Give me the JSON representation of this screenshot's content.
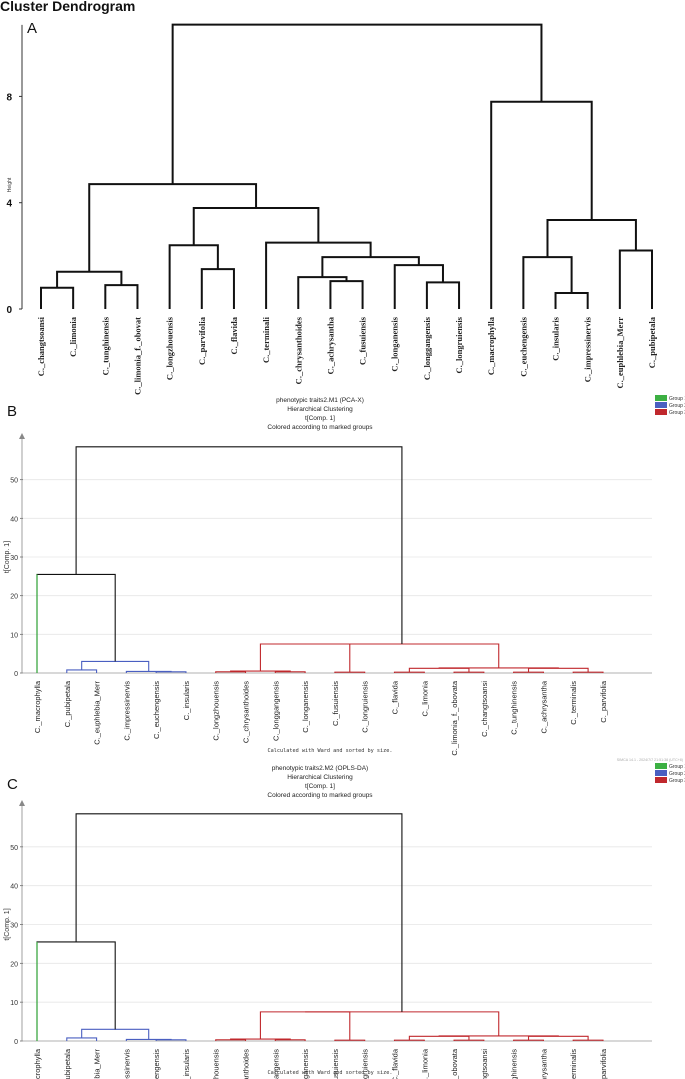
{
  "chart_data": [
    {
      "type": "dendrogram",
      "panel_label": "A",
      "title": "Cluster Dendrogram",
      "ylabel": "Height",
      "yticks": [
        0,
        4,
        8
      ],
      "ylim": [
        0,
        10.8
      ],
      "leaves": [
        "C._changtsoansi",
        "C._limonia",
        "C._tunghinensis",
        "C._limonia_f._obovat",
        "C._longzhouensis",
        "C._parvifolia",
        "C._flavida",
        "C._terminali",
        "C._chrysanthoides",
        "C._achrysantha",
        "C._fusuiensis",
        "C._longanensis",
        "C._longgangensis",
        "C._longruiensis",
        "C._macrophylla",
        "C._euchengensis",
        "C._insularis",
        "C._impressinervis",
        "C._euphlebia_Merr",
        "C._pubipetala"
      ],
      "merges": [
        {
          "a": "L0",
          "b": "L1",
          "h": 0.8
        },
        {
          "a": "L2",
          "b": "L3",
          "h": 0.9
        },
        {
          "a": "N0",
          "b": "N1",
          "h": 1.4
        },
        {
          "a": "L5",
          "b": "L6",
          "h": 1.5
        },
        {
          "a": "L4",
          "b": "N3",
          "h": 2.4
        },
        {
          "a": "L9",
          "b": "L10",
          "h": 1.05
        },
        {
          "a": "L8",
          "b": "N5",
          "h": 1.2
        },
        {
          "a": "L12",
          "b": "L13",
          "h": 1.0
        },
        {
          "a": "L11",
          "b": "N7",
          "h": 1.65
        },
        {
          "a": "N6",
          "b": "N8",
          "h": 1.95
        },
        {
          "a": "L7",
          "b": "N9",
          "h": 2.5
        },
        {
          "a": "N4",
          "b": "N10",
          "h": 3.8
        },
        {
          "a": "N2",
          "b": "N11",
          "h": 4.7
        },
        {
          "a": "L16",
          "b": "L17",
          "h": 0.6
        },
        {
          "a": "L15",
          "b": "N13",
          "h": 1.95
        },
        {
          "a": "L18",
          "b": "L19",
          "h": 2.2
        },
        {
          "a": "N14",
          "b": "N15",
          "h": 3.35
        },
        {
          "a": "L14",
          "b": "N16",
          "h": 7.8
        },
        {
          "a": "N12",
          "b": "N17",
          "h": 10.7
        }
      ]
    },
    {
      "type": "dendrogram",
      "panel_label": "B",
      "title": "phenotypic traits2.M1 (PCA-X)",
      "subtitle1": "Hierarchical Clustering",
      "subtitle2": "t[Comp. 1]",
      "subtitle3": "Colored according to marked groups",
      "ylabel": "t[Comp. 1]",
      "yticks": [
        0,
        10,
        20,
        30,
        40,
        50
      ],
      "ylim": [
        0,
        60
      ],
      "footer": "Calculated with Ward and sorted by size.",
      "watermark": "SIMCA 14.1 - 2024/7/7 21:51:38 (UTC+8)",
      "legend": [
        {
          "label": "Group 1",
          "color": "#3cb043"
        },
        {
          "label": "Group 2",
          "color": "#4a5fc1"
        },
        {
          "label": "Group 3",
          "color": "#c0282d"
        }
      ],
      "leaves": [
        "C._macrophylla",
        "C._pubipetala",
        "C._euphlebia_Merr",
        "C._impressinervis",
        "C._euchengensis",
        "C._insularis",
        "C._longzhouensis",
        "C._chrysanthoides",
        "C._longgangensis",
        "C._longanensis",
        "C._fusuiensis",
        "C._longruiensis",
        "C._flavida",
        "C._limonia",
        "C._limonia_f._obovata",
        "C._changtsoansi",
        "C._tunghinensis",
        "C._achrysantha",
        "C._terminalis",
        "C._parvifolia"
      ],
      "leaf_groups": [
        1,
        2,
        2,
        2,
        2,
        2,
        3,
        3,
        3,
        3,
        3,
        3,
        3,
        3,
        3,
        3,
        3,
        3,
        3,
        3
      ],
      "merges": [
        {
          "a": "L1",
          "b": "L2",
          "h": 0.8,
          "g": 2
        },
        {
          "a": "L4",
          "b": "L5",
          "h": 0.3,
          "g": 2
        },
        {
          "a": "L3",
          "b": "N1",
          "h": 0.4,
          "g": 2
        },
        {
          "a": "N0",
          "b": "N2",
          "h": 3.0,
          "g": 2
        },
        {
          "a": "N3",
          "b": "L0",
          "h": 25.5,
          "g": 0
        },
        {
          "a": "L6",
          "b": "L7",
          "h": 0.3,
          "g": 3
        },
        {
          "a": "L8",
          "b": "L9",
          "h": 0.3,
          "g": 3
        },
        {
          "a": "N5",
          "b": "N6",
          "h": 0.5,
          "g": 3
        },
        {
          "a": "L10",
          "b": "L11",
          "h": 0.2,
          "g": 3
        },
        {
          "a": "N7",
          "b": "N8",
          "h": 7.5,
          "g": 3
        },
        {
          "a": "L12",
          "b": "L13",
          "h": 0.2,
          "g": 3
        },
        {
          "a": "L14",
          "b": "L15",
          "h": 0.2,
          "g": 3
        },
        {
          "a": "N10",
          "b": "N11",
          "h": 1.2,
          "g": 3
        },
        {
          "a": "L16",
          "b": "L17",
          "h": 0.2,
          "g": 3
        },
        {
          "a": "L18",
          "b": "L19",
          "h": 0.2,
          "g": 3
        },
        {
          "a": "N13",
          "b": "N14",
          "h": 1.2,
          "g": 3
        },
        {
          "a": "N12",
          "b": "N15",
          "h": 1.3,
          "g": 3
        },
        {
          "a": "N9",
          "b": "N16",
          "h": 7.5,
          "g": 3
        },
        {
          "a": "N4",
          "b": "N17",
          "h": 58.5,
          "g": 0
        }
      ]
    },
    {
      "type": "dendrogram",
      "panel_label": "C",
      "title": "phenotypic traits2.M2 (OPLS-DA)",
      "subtitle1": "Hierarchical Clustering",
      "subtitle2": "t[Comp. 1]",
      "subtitle3": "Colored according to marked groups",
      "ylabel": "t[Comp. 1]",
      "yticks": [
        0,
        10,
        20,
        30,
        40,
        50
      ],
      "ylim": [
        0,
        60
      ],
      "footer": "Calculated with Ward and sorted by size.",
      "watermark": "SIMCA 14.1 - 2024/7/7 18:44:04 (UTC+8)",
      "legend": [
        {
          "label": "Group 1",
          "color": "#3cb043"
        },
        {
          "label": "Group 2",
          "color": "#4a5fc1"
        },
        {
          "label": "Group 3",
          "color": "#c0282d"
        }
      ],
      "leaves": [
        "C._macrophylla",
        "C._pubipetala",
        "C._euphlebia_Merr",
        "C._impressinervis",
        "C._euchengensis",
        "C._insularis",
        "C._longzhouensis",
        "C._chrysanthoides",
        "C._longgangensis",
        "C._longanensis",
        "C._fusuiensis",
        "C._longruiensis",
        "C._flavida",
        "C._limonia",
        "C._limonia_f._obovata",
        "C._changtsoansi",
        "C._tunghinensis",
        "C._achrysantha",
        "C._terminalis",
        "C._parvifolia"
      ],
      "leaf_groups": [
        1,
        2,
        2,
        2,
        2,
        2,
        3,
        3,
        3,
        3,
        3,
        3,
        3,
        3,
        3,
        3,
        3,
        3,
        3,
        3
      ],
      "merges": [
        {
          "a": "L1",
          "b": "L2",
          "h": 0.8,
          "g": 2
        },
        {
          "a": "L4",
          "b": "L5",
          "h": 0.3,
          "g": 2
        },
        {
          "a": "L3",
          "b": "N1",
          "h": 0.4,
          "g": 2
        },
        {
          "a": "N0",
          "b": "N2",
          "h": 3.0,
          "g": 2
        },
        {
          "a": "N3",
          "b": "L0",
          "h": 25.5,
          "g": 0
        },
        {
          "a": "L6",
          "b": "L7",
          "h": 0.3,
          "g": 3
        },
        {
          "a": "L8",
          "b": "L9",
          "h": 0.3,
          "g": 3
        },
        {
          "a": "N5",
          "b": "N6",
          "h": 0.5,
          "g": 3
        },
        {
          "a": "L10",
          "b": "L11",
          "h": 0.2,
          "g": 3
        },
        {
          "a": "N7",
          "b": "N8",
          "h": 7.5,
          "g": 3
        },
        {
          "a": "L12",
          "b": "L13",
          "h": 0.2,
          "g": 3
        },
        {
          "a": "L14",
          "b": "L15",
          "h": 0.2,
          "g": 3
        },
        {
          "a": "N10",
          "b": "N11",
          "h": 1.2,
          "g": 3
        },
        {
          "a": "L16",
          "b": "L17",
          "h": 0.2,
          "g": 3
        },
        {
          "a": "L18",
          "b": "L19",
          "h": 0.2,
          "g": 3
        },
        {
          "a": "N13",
          "b": "N14",
          "h": 1.2,
          "g": 3
        },
        {
          "a": "N12",
          "b": "N15",
          "h": 1.3,
          "g": 3
        },
        {
          "a": "N9",
          "b": "N16",
          "h": 7.5,
          "g": 3
        },
        {
          "a": "N4",
          "b": "N17",
          "h": 58.5,
          "g": 0
        }
      ]
    }
  ]
}
